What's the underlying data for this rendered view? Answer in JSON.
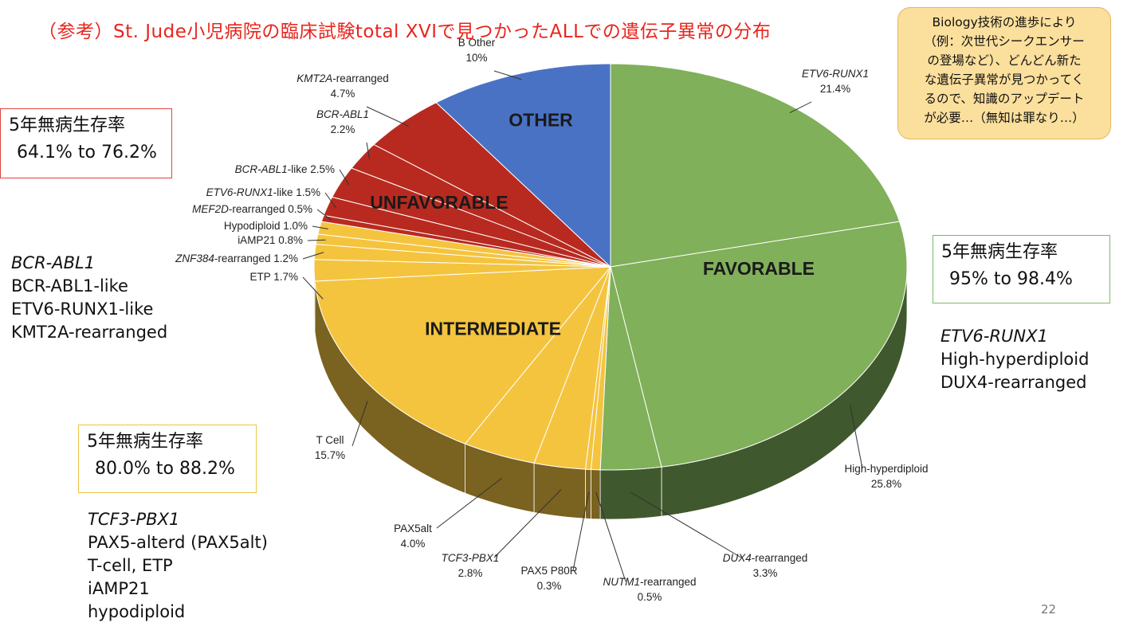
{
  "title": "（参考）St. Jude小児病院の臨床試験total XVIで見つかったALLでの遺伝子異常の分布",
  "note": {
    "lines": [
      "Biology技術の進歩により",
      "（例：次世代シークエンサー",
      "の登場など）、どんどん新た",
      "な遺伝子異常が見つかってく",
      "るので、知識のアップデート",
      "が必要…（無知は罪なり…）"
    ]
  },
  "survival": {
    "unfavorable": {
      "label": "5年無病生存率",
      "range": "64.1% to 76.2%"
    },
    "favorable": {
      "label": "5年無病生存率",
      "range": "95% to 98.4%"
    },
    "intermediate": {
      "label": "5年無病生存率",
      "range": "80.0% to 88.2%"
    }
  },
  "lists": {
    "unfavorable": [
      {
        "text": "BCR-ABL1",
        "italic": true
      },
      {
        "text": "BCR-ABL1-like",
        "italic": false
      },
      {
        "text": "ETV6-RUNX1-like",
        "italic": false
      },
      {
        "text": "KMT2A-rearranged",
        "italic": false
      }
    ],
    "favorable": [
      {
        "text": "ETV6-RUNX1",
        "italic": true
      },
      {
        "text": "High-hyperdiploid",
        "italic": false
      },
      {
        "text": "DUX4-rearranged",
        "italic": false
      }
    ],
    "intermediate": [
      {
        "text": "TCF3-PBX1",
        "italic": true
      },
      {
        "text": "PAX5-alterd (PAX5alt)",
        "italic": false
      },
      {
        "text": "T-cell, ETP",
        "italic": false
      },
      {
        "text": "iAMP21",
        "italic": false
      },
      {
        "text": "hypodiploid",
        "italic": false
      }
    ]
  },
  "page_number": "22",
  "colors": {
    "favorable": "#80b05a",
    "intermediate": "#f4c43f",
    "unfavorable": "#b82a20",
    "other": "#4a72c4",
    "title": "#e8251e"
  },
  "chart_data": {
    "type": "pie",
    "title": "",
    "groups": [
      {
        "name": "OTHER",
        "color": "#4a72c4"
      },
      {
        "name": "FAVORABLE",
        "color": "#80b05a"
      },
      {
        "name": "INTERMEDIATE",
        "color": "#f4c43f"
      },
      {
        "name": "UNFAVORABLE",
        "color": "#b82a20"
      }
    ],
    "slices": [
      {
        "name": "ETV6-RUNX1",
        "value": 21.4,
        "label": "21.4%",
        "group": "FAVORABLE"
      },
      {
        "name": "High-hyperdiploid",
        "value": 25.8,
        "label": "25.8%",
        "group": "FAVORABLE"
      },
      {
        "name": "DUX4-rearranged",
        "value": 3.3,
        "label": "3.3%",
        "group": "FAVORABLE"
      },
      {
        "name": "NUTM1-rearranged",
        "value": 0.5,
        "label": "0.5%",
        "group": "INTERMEDIATE"
      },
      {
        "name": "PAX5 P80R",
        "value": 0.3,
        "label": "0.3%",
        "group": "INTERMEDIATE"
      },
      {
        "name": "TCF3-PBX1",
        "value": 2.8,
        "label": "2.8%",
        "group": "INTERMEDIATE"
      },
      {
        "name": "PAX5alt",
        "value": 4.0,
        "label": "4.0%",
        "group": "INTERMEDIATE"
      },
      {
        "name": "T Cell",
        "value": 15.7,
        "label": "15.7%",
        "group": "INTERMEDIATE"
      },
      {
        "name": "ETP",
        "value": 1.7,
        "label": "1.7%",
        "group": "INTERMEDIATE"
      },
      {
        "name": "ZNF384-rearranged",
        "value": 1.2,
        "label": "1.2%",
        "group": "INTERMEDIATE"
      },
      {
        "name": "iAMP21",
        "value": 0.8,
        "label": "0.8%",
        "group": "INTERMEDIATE"
      },
      {
        "name": "Hypodiploid",
        "value": 1.0,
        "label": "1.0%",
        "group": "INTERMEDIATE"
      },
      {
        "name": "MEF2D-rearranged",
        "value": 0.5,
        "label": "0.5%",
        "group": "UNFAVORABLE"
      },
      {
        "name": "ETV6-RUNX1-like",
        "value": 1.5,
        "label": "1.5%",
        "group": "UNFAVORABLE"
      },
      {
        "name": "BCR-ABL1-like",
        "value": 2.5,
        "label": "2.5%",
        "group": "UNFAVORABLE"
      },
      {
        "name": "BCR-ABL1",
        "value": 2.2,
        "label": "2.2%",
        "group": "UNFAVORABLE"
      },
      {
        "name": "KMT2A-rearranged",
        "value": 4.7,
        "label": "4.7%",
        "group": "UNFAVORABLE"
      },
      {
        "name": "B Other",
        "value": 10,
        "label": "10%",
        "group": "OTHER"
      }
    ]
  }
}
